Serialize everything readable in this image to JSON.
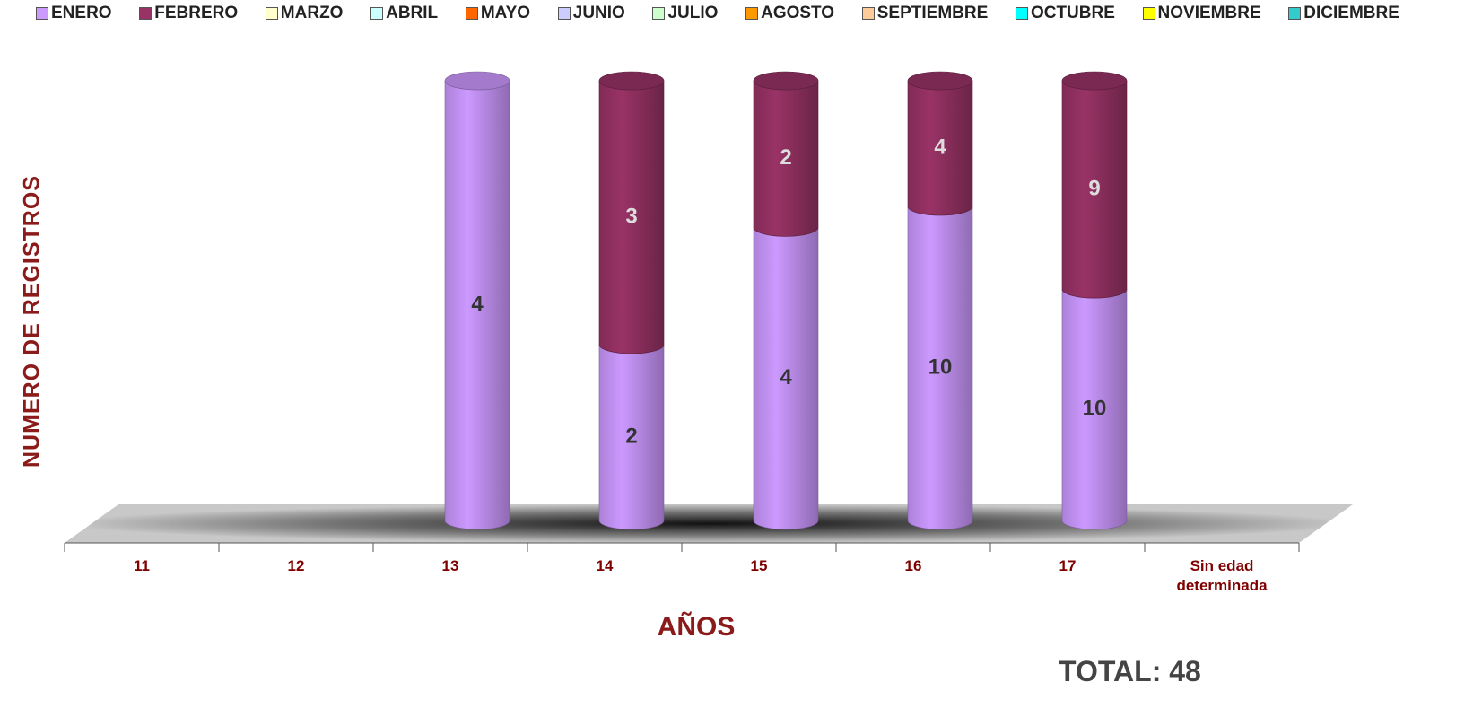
{
  "chart_data": {
    "type": "bar",
    "stacking": "percent",
    "categories": [
      "11",
      "12",
      "13",
      "14",
      "15",
      "16",
      "17",
      "Sin edad determinada"
    ],
    "series": [
      {
        "name": "ENERO",
        "color": "#cc99ff",
        "values": [
          null,
          null,
          4,
          2,
          4,
          10,
          10,
          null
        ]
      },
      {
        "name": "FEBRERO",
        "color": "#993366",
        "values": [
          null,
          null,
          null,
          3,
          2,
          4,
          9,
          null
        ]
      },
      {
        "name": "MARZO",
        "color": "#ffffcc",
        "values": [
          null,
          null,
          null,
          null,
          null,
          null,
          null,
          null
        ]
      },
      {
        "name": "ABRIL",
        "color": "#ccffff",
        "values": [
          null,
          null,
          null,
          null,
          null,
          null,
          null,
          null
        ]
      },
      {
        "name": "MAYO",
        "color": "#ff6600",
        "values": [
          null,
          null,
          null,
          null,
          null,
          null,
          null,
          null
        ]
      },
      {
        "name": "JUNIO",
        "color": "#ccccff",
        "values": [
          null,
          null,
          null,
          null,
          null,
          null,
          null,
          null
        ]
      },
      {
        "name": "JULIO",
        "color": "#ccffcc",
        "values": [
          null,
          null,
          null,
          null,
          null,
          null,
          null,
          null
        ]
      },
      {
        "name": "AGOSTO",
        "color": "#ff9900",
        "values": [
          null,
          null,
          null,
          null,
          null,
          null,
          null,
          null
        ]
      },
      {
        "name": "SEPTIEMBRE",
        "color": "#ffcc99",
        "values": [
          null,
          null,
          null,
          null,
          null,
          null,
          null,
          null
        ]
      },
      {
        "name": "OCTUBRE",
        "color": "#00ffff",
        "values": [
          null,
          null,
          null,
          null,
          null,
          null,
          null,
          null
        ]
      },
      {
        "name": "NOVIEMBRE",
        "color": "#ffff00",
        "values": [
          null,
          null,
          null,
          null,
          null,
          null,
          null,
          null
        ]
      },
      {
        "name": "DICIEMBRE",
        "color": "#33cccc",
        "values": [
          null,
          null,
          null,
          null,
          null,
          null,
          null,
          null
        ]
      }
    ],
    "y_label": "NUMERO DE REGISTROS",
    "x_label": "AÑOS",
    "annotation": "TOTAL: 48"
  }
}
